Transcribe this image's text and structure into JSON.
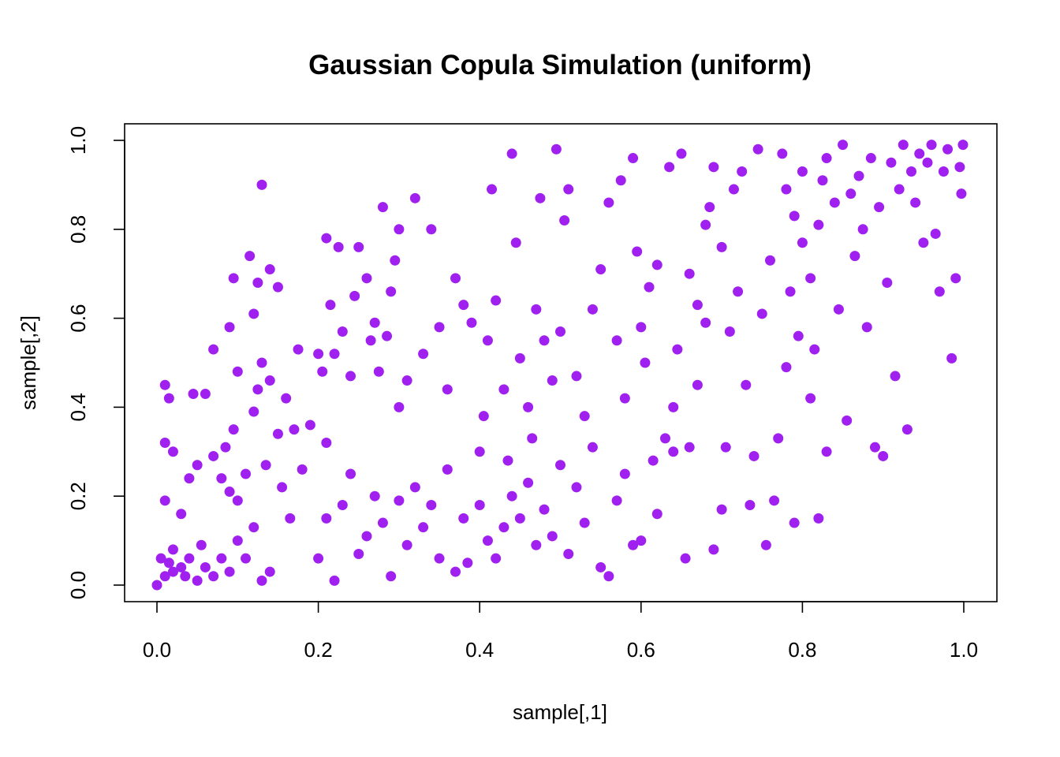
{
  "chart_data": {
    "type": "scatter",
    "title": "Gaussian Copula Simulation (uniform)",
    "xlabel": "sample[,1]",
    "ylabel": "sample[,2]",
    "xlim": [
      0.0,
      1.0
    ],
    "ylim": [
      0.0,
      1.0
    ],
    "x_ticks": [
      "0.0",
      "0.2",
      "0.4",
      "0.6",
      "0.8",
      "1.0"
    ],
    "y_ticks": [
      "0.0",
      "0.2",
      "0.4",
      "0.6",
      "0.8",
      "1.0"
    ],
    "grid": false,
    "point_color": "#a020f0",
    "series": [
      {
        "points": [
          [
            0.0,
            0.0
          ],
          [
            0.01,
            0.02
          ],
          [
            0.02,
            0.03
          ],
          [
            0.015,
            0.05
          ],
          [
            0.03,
            0.04
          ],
          [
            0.005,
            0.06
          ],
          [
            0.02,
            0.08
          ],
          [
            0.04,
            0.06
          ],
          [
            0.035,
            0.02
          ],
          [
            0.05,
            0.01
          ],
          [
            0.06,
            0.04
          ],
          [
            0.07,
            0.02
          ],
          [
            0.055,
            0.09
          ],
          [
            0.08,
            0.06
          ],
          [
            0.09,
            0.03
          ],
          [
            0.1,
            0.1
          ],
          [
            0.11,
            0.06
          ],
          [
            0.12,
            0.13
          ],
          [
            0.13,
            0.01
          ],
          [
            0.14,
            0.03
          ],
          [
            0.01,
            0.45
          ],
          [
            0.01,
            0.19
          ],
          [
            0.015,
            0.42
          ],
          [
            0.01,
            0.32
          ],
          [
            0.02,
            0.3
          ],
          [
            0.03,
            0.16
          ],
          [
            0.04,
            0.24
          ],
          [
            0.05,
            0.27
          ],
          [
            0.045,
            0.43
          ],
          [
            0.06,
            0.43
          ],
          [
            0.07,
            0.53
          ],
          [
            0.09,
            0.58
          ],
          [
            0.095,
            0.69
          ],
          [
            0.1,
            0.48
          ],
          [
            0.12,
            0.61
          ],
          [
            0.115,
            0.74
          ],
          [
            0.125,
            0.68
          ],
          [
            0.13,
            0.9
          ],
          [
            0.14,
            0.71
          ],
          [
            0.15,
            0.67
          ],
          [
            0.07,
            0.29
          ],
          [
            0.08,
            0.24
          ],
          [
            0.085,
            0.31
          ],
          [
            0.09,
            0.21
          ],
          [
            0.095,
            0.35
          ],
          [
            0.1,
            0.19
          ],
          [
            0.11,
            0.25
          ],
          [
            0.12,
            0.39
          ],
          [
            0.125,
            0.44
          ],
          [
            0.13,
            0.5
          ],
          [
            0.135,
            0.27
          ],
          [
            0.14,
            0.46
          ],
          [
            0.15,
            0.34
          ],
          [
            0.155,
            0.22
          ],
          [
            0.16,
            0.42
          ],
          [
            0.165,
            0.15
          ],
          [
            0.17,
            0.35
          ],
          [
            0.175,
            0.53
          ],
          [
            0.18,
            0.26
          ],
          [
            0.19,
            0.36
          ],
          [
            0.2,
            0.52
          ],
          [
            0.205,
            0.48
          ],
          [
            0.21,
            0.32
          ],
          [
            0.215,
            0.63
          ],
          [
            0.22,
            0.52
          ],
          [
            0.23,
            0.57
          ],
          [
            0.24,
            0.47
          ],
          [
            0.21,
            0.78
          ],
          [
            0.225,
            0.76
          ],
          [
            0.245,
            0.65
          ],
          [
            0.25,
            0.76
          ],
          [
            0.26,
            0.69
          ],
          [
            0.265,
            0.55
          ],
          [
            0.27,
            0.59
          ],
          [
            0.275,
            0.48
          ],
          [
            0.28,
            0.85
          ],
          [
            0.285,
            0.56
          ],
          [
            0.29,
            0.66
          ],
          [
            0.295,
            0.73
          ],
          [
            0.3,
            0.8
          ],
          [
            0.22,
            0.01
          ],
          [
            0.2,
            0.06
          ],
          [
            0.21,
            0.15
          ],
          [
            0.23,
            0.18
          ],
          [
            0.24,
            0.25
          ],
          [
            0.25,
            0.07
          ],
          [
            0.26,
            0.11
          ],
          [
            0.27,
            0.2
          ],
          [
            0.28,
            0.14
          ],
          [
            0.29,
            0.02
          ],
          [
            0.3,
            0.19
          ],
          [
            0.31,
            0.09
          ],
          [
            0.32,
            0.22
          ],
          [
            0.33,
            0.13
          ],
          [
            0.34,
            0.18
          ],
          [
            0.35,
            0.06
          ],
          [
            0.36,
            0.26
          ],
          [
            0.37,
            0.03
          ],
          [
            0.38,
            0.15
          ],
          [
            0.385,
            0.05
          ],
          [
            0.3,
            0.4
          ],
          [
            0.31,
            0.46
          ],
          [
            0.32,
            0.87
          ],
          [
            0.33,
            0.52
          ],
          [
            0.34,
            0.8
          ],
          [
            0.35,
            0.58
          ],
          [
            0.36,
            0.44
          ],
          [
            0.37,
            0.69
          ],
          [
            0.38,
            0.63
          ],
          [
            0.39,
            0.59
          ],
          [
            0.4,
            0.3
          ],
          [
            0.405,
            0.38
          ],
          [
            0.41,
            0.55
          ],
          [
            0.415,
            0.89
          ],
          [
            0.42,
            0.64
          ],
          [
            0.43,
            0.44
          ],
          [
            0.435,
            0.28
          ],
          [
            0.44,
            0.97
          ],
          [
            0.445,
            0.77
          ],
          [
            0.45,
            0.51
          ],
          [
            0.46,
            0.4
          ],
          [
            0.465,
            0.33
          ],
          [
            0.47,
            0.62
          ],
          [
            0.475,
            0.87
          ],
          [
            0.48,
            0.55
          ],
          [
            0.49,
            0.46
          ],
          [
            0.495,
            0.98
          ],
          [
            0.5,
            0.57
          ],
          [
            0.505,
            0.82
          ],
          [
            0.51,
            0.89
          ],
          [
            0.4,
            0.18
          ],
          [
            0.41,
            0.1
          ],
          [
            0.42,
            0.06
          ],
          [
            0.43,
            0.13
          ],
          [
            0.44,
            0.2
          ],
          [
            0.45,
            0.15
          ],
          [
            0.46,
            0.23
          ],
          [
            0.47,
            0.09
          ],
          [
            0.48,
            0.17
          ],
          [
            0.49,
            0.11
          ],
          [
            0.5,
            0.27
          ],
          [
            0.51,
            0.07
          ],
          [
            0.52,
            0.22
          ],
          [
            0.53,
            0.14
          ],
          [
            0.54,
            0.31
          ],
          [
            0.55,
            0.04
          ],
          [
            0.56,
            0.02
          ],
          [
            0.57,
            0.19
          ],
          [
            0.58,
            0.25
          ],
          [
            0.59,
            0.09
          ],
          [
            0.52,
            0.47
          ],
          [
            0.53,
            0.38
          ],
          [
            0.54,
            0.62
          ],
          [
            0.55,
            0.71
          ],
          [
            0.56,
            0.86
          ],
          [
            0.57,
            0.55
          ],
          [
            0.575,
            0.91
          ],
          [
            0.58,
            0.42
          ],
          [
            0.59,
            0.96
          ],
          [
            0.595,
            0.75
          ],
          [
            0.6,
            0.58
          ],
          [
            0.605,
            0.5
          ],
          [
            0.61,
            0.67
          ],
          [
            0.615,
            0.28
          ],
          [
            0.62,
            0.72
          ],
          [
            0.63,
            0.33
          ],
          [
            0.635,
            0.94
          ],
          [
            0.64,
            0.4
          ],
          [
            0.645,
            0.53
          ],
          [
            0.65,
            0.97
          ],
          [
            0.6,
            0.1
          ],
          [
            0.62,
            0.16
          ],
          [
            0.64,
            0.3
          ],
          [
            0.655,
            0.06
          ],
          [
            0.66,
            0.31
          ],
          [
            0.67,
            0.45
          ],
          [
            0.68,
            0.59
          ],
          [
            0.69,
            0.08
          ],
          [
            0.7,
            0.17
          ],
          [
            0.705,
            0.31
          ],
          [
            0.66,
            0.7
          ],
          [
            0.67,
            0.63
          ],
          [
            0.68,
            0.81
          ],
          [
            0.685,
            0.85
          ],
          [
            0.69,
            0.94
          ],
          [
            0.7,
            0.76
          ],
          [
            0.71,
            0.57
          ],
          [
            0.715,
            0.89
          ],
          [
            0.72,
            0.66
          ],
          [
            0.725,
            0.93
          ],
          [
            0.73,
            0.45
          ],
          [
            0.735,
            0.18
          ],
          [
            0.74,
            0.29
          ],
          [
            0.745,
            0.98
          ],
          [
            0.75,
            0.61
          ],
          [
            0.755,
            0.09
          ],
          [
            0.76,
            0.73
          ],
          [
            0.765,
            0.19
          ],
          [
            0.77,
            0.33
          ],
          [
            0.775,
            0.97
          ],
          [
            0.78,
            0.49
          ],
          [
            0.785,
            0.66
          ],
          [
            0.79,
            0.14
          ],
          [
            0.795,
            0.56
          ],
          [
            0.8,
            0.77
          ],
          [
            0.81,
            0.42
          ],
          [
            0.815,
            0.53
          ],
          [
            0.82,
            0.15
          ],
          [
            0.825,
            0.91
          ],
          [
            0.83,
            0.3
          ],
          [
            0.78,
            0.89
          ],
          [
            0.79,
            0.83
          ],
          [
            0.8,
            0.93
          ],
          [
            0.81,
            0.69
          ],
          [
            0.82,
            0.81
          ],
          [
            0.83,
            0.96
          ],
          [
            0.84,
            0.86
          ],
          [
            0.845,
            0.62
          ],
          [
            0.85,
            0.99
          ],
          [
            0.855,
            0.37
          ],
          [
            0.86,
            0.88
          ],
          [
            0.865,
            0.74
          ],
          [
            0.87,
            0.92
          ],
          [
            0.875,
            0.8
          ],
          [
            0.88,
            0.58
          ],
          [
            0.885,
            0.96
          ],
          [
            0.89,
            0.31
          ],
          [
            0.895,
            0.85
          ],
          [
            0.9,
            0.29
          ],
          [
            0.905,
            0.68
          ],
          [
            0.91,
            0.95
          ],
          [
            0.915,
            0.47
          ],
          [
            0.92,
            0.89
          ],
          [
            0.925,
            0.99
          ],
          [
            0.93,
            0.35
          ],
          [
            0.935,
            0.93
          ],
          [
            0.94,
            0.86
          ],
          [
            0.945,
            0.97
          ],
          [
            0.95,
            0.77
          ],
          [
            0.955,
            0.95
          ],
          [
            0.96,
            0.99
          ],
          [
            0.965,
            0.79
          ],
          [
            0.97,
            0.66
          ],
          [
            0.975,
            0.93
          ],
          [
            0.98,
            0.98
          ],
          [
            0.985,
            0.51
          ],
          [
            0.99,
            0.69
          ],
          [
            0.995,
            0.94
          ],
          [
            0.997,
            0.88
          ],
          [
            0.999,
            0.99
          ]
        ]
      }
    ]
  }
}
